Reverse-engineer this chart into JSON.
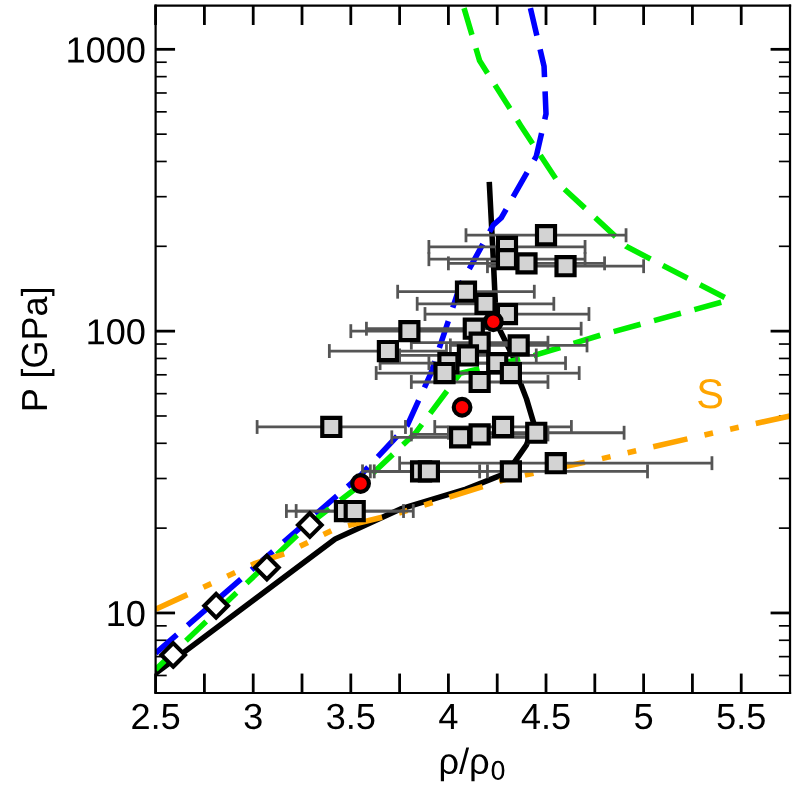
{
  "chart_data": {
    "type": "line",
    "xlabel": "ρ/ρ$_{0}$",
    "ylabel": "P [GPa]",
    "log": "y",
    "xlim": [
      2.5,
      5.75
    ],
    "ylim": [
      5.2,
      1430
    ],
    "xticks": [
      2.5,
      {
        "value": 2.75,
        "label": null
      },
      3,
      {
        "value": 3.25,
        "label": null
      },
      3.5,
      {
        "value": 3.75,
        "label": null
      },
      4,
      {
        "value": 4.25,
        "label": null
      },
      4.5,
      {
        "value": 4.75,
        "label": null
      },
      5,
      {
        "value": 5.25,
        "label": null
      },
      5.5
    ],
    "yticks": [
      10,
      100,
      1000
    ],
    "grid": false,
    "legend": false,
    "annotations": [
      "S"
    ],
    "series": [
      {
        "line_style": "solid",
        "marker": "none",
        "color": "#000000",
        "x": [
          2.5,
          3.42,
          3.755,
          4.09,
          4.3,
          4.4,
          4.44,
          4.4,
          4.35,
          4.34,
          4.245,
          4.23,
          4.21
        ],
        "values": [
          6.1,
          18.3,
          23.4,
          27.5,
          31.4,
          39.5,
          46.4,
          57.5,
          70.8,
          79,
          107,
          180,
          331
        ]
      },
      {
        "line_style": "dashed",
        "marker": "none",
        "color": "#0000ff",
        "x": [
          2.5,
          3.55,
          3.79,
          3.91,
          4.06,
          4.23,
          4.27,
          4.45,
          4.5,
          4.49,
          4.42
        ],
        "values": [
          7.2,
          30.8,
          46.4,
          70.8,
          145,
          238,
          252,
          417,
          590,
          870,
          1400
        ]
      },
      {
        "line_style": "dashed",
        "marker": "none",
        "color": "#00ee00",
        "x": [
          2.5,
          3.28,
          3.55,
          3.83,
          4.06,
          4.44,
          4.78,
          5.44,
          4.91,
          4.57,
          4.37,
          4.16,
          4.08
        ],
        "values": [
          6.3,
          20.5,
          28.5,
          43.4,
          70.8,
          82,
          96.8,
          129,
          200,
          331,
          537,
          910,
          1400
        ]
      },
      {
        "line_style": "dashdot",
        "marker": "none",
        "color": "#ffa500",
        "x": [
          2.5,
          3.01,
          3.17,
          3.42,
          3.755,
          4.3,
          4.78,
          5.36,
          5.75
        ],
        "values": [
          10.3,
          15,
          16.3,
          19.9,
          22.7,
          29.9,
          35.2,
          43.6,
          50
        ]
      },
      {
        "type": "scatter",
        "marker": "square",
        "color": "#d3d3d3",
        "x": [
          4.5,
          4.3,
          4.3,
          4.4,
          4.6,
          4.09,
          4.19,
          4.3,
          4.13,
          3.8,
          4.16,
          4.36,
          3.69,
          4.1,
          4.0,
          3.98,
          4.25,
          4.32,
          4.16,
          3.4,
          4.06,
          4.16,
          4.28,
          4.45,
          3.86,
          3.9,
          4.32,
          4.55,
          3.47,
          3.52
        ],
        "values": [
          219,
          199,
          180,
          174,
          170,
          138,
          125,
          115,
          102,
          100,
          91,
          89,
          85,
          82,
          77,
          71,
          77,
          71,
          66,
          45.7,
          42,
          43,
          45.7,
          43.6,
          31.8,
          31.8,
          31.8,
          34,
          23,
          23
        ],
        "xerrors": [
          0.41,
          0.4,
          0.4,
          0.4,
          0.4,
          0.35,
          0.35,
          0.42,
          0.55,
          0.3,
          0.35,
          0.35,
          0.3,
          0.35,
          0.35,
          0.35,
          0.35,
          0.35,
          0.35,
          0.38,
          0.35,
          0.35,
          0.35,
          0.45,
          0.3,
          0.3,
          0.7,
          0.8,
          0.3,
          0.3
        ]
      },
      {
        "type": "scatter",
        "marker": "diamond",
        "color": "#ffffff",
        "x": [
          2.59,
          2.81,
          3.07,
          3.29
        ],
        "values": [
          7.1,
          10.6,
          14.5,
          20.5
        ]
      },
      {
        "type": "scatter",
        "marker": "circle",
        "color": "#ff0000",
        "x": [
          3.55,
          4.07,
          4.23
        ],
        "values": [
          28.8,
          53.7,
          108
        ]
      }
    ]
  }
}
